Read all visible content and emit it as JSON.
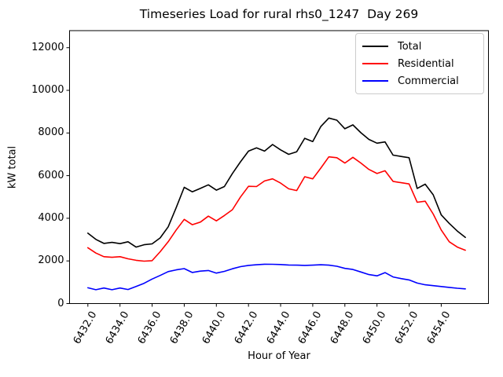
{
  "chart_data": {
    "type": "line",
    "title": "Timeseries Load for rural rhs0_1247  Day 269",
    "xlabel": "Hour of Year",
    "ylabel": "kW total",
    "xlim": [
      6430.86,
      6456.94
    ],
    "ylim": [
      0,
      12800
    ],
    "grid": false,
    "legend_position": "upper right",
    "xtick_labels": [
      "6432.0",
      "6434.0",
      "6436.0",
      "6438.0",
      "6440.0",
      "6442.0",
      "6444.0",
      "6446.0",
      "6448.0",
      "6450.0",
      "6452.0",
      "6454.0"
    ],
    "ytick_labels": [
      "0",
      "2000",
      "4000",
      "6000",
      "8000",
      "10000",
      "12000"
    ],
    "x": [
      6432.0,
      6432.5,
      6433.0,
      6433.5,
      6434.0,
      6434.5,
      6435.0,
      6435.5,
      6436.0,
      6436.5,
      6437.0,
      6437.5,
      6438.0,
      6438.5,
      6439.0,
      6439.5,
      6440.0,
      6440.5,
      6441.0,
      6441.5,
      6442.0,
      6442.5,
      6443.0,
      6443.5,
      6444.0,
      6444.5,
      6445.0,
      6445.5,
      6446.0,
      6446.5,
      6447.0,
      6447.5,
      6448.0,
      6448.5,
      6449.0,
      6449.5,
      6450.0,
      6450.5,
      6451.0,
      6451.5,
      6452.0,
      6452.5,
      6453.0,
      6453.5,
      6454.0,
      6454.5,
      6455.0,
      6455.5
    ],
    "series": [
      {
        "name": "Total",
        "color": "#000000",
        "values": [
          3300,
          3010,
          2820,
          2870,
          2810,
          2900,
          2650,
          2760,
          2800,
          3080,
          3600,
          4500,
          5450,
          5240,
          5400,
          5570,
          5320,
          5490,
          6100,
          6650,
          7150,
          7300,
          7150,
          7460,
          7210,
          7000,
          7120,
          7750,
          7600,
          8300,
          8700,
          8600,
          8200,
          8380,
          8010,
          7700,
          7520,
          7580,
          6960,
          6900,
          6840,
          5400,
          5600,
          5100,
          4160,
          3760,
          3400,
          3100
        ]
      },
      {
        "name": "Residential",
        "color": "#ff0000",
        "values": [
          2620,
          2370,
          2200,
          2170,
          2200,
          2100,
          2030,
          1990,
          2010,
          2430,
          2900,
          3450,
          3950,
          3700,
          3820,
          4100,
          3880,
          4130,
          4400,
          5000,
          5500,
          5490,
          5750,
          5850,
          5650,
          5380,
          5300,
          5950,
          5850,
          6350,
          6880,
          6840,
          6590,
          6860,
          6590,
          6290,
          6100,
          6230,
          5730,
          5670,
          5610,
          4750,
          4800,
          4200,
          3450,
          2900,
          2650,
          2500
        ]
      },
      {
        "name": "Commercial",
        "color": "#0000ff",
        "values": [
          740,
          650,
          730,
          650,
          730,
          660,
          800,
          950,
          1150,
          1320,
          1500,
          1580,
          1640,
          1460,
          1520,
          1550,
          1430,
          1510,
          1630,
          1730,
          1790,
          1820,
          1845,
          1840,
          1830,
          1810,
          1800,
          1790,
          1800,
          1820,
          1800,
          1750,
          1650,
          1600,
          1480,
          1360,
          1300,
          1450,
          1250,
          1170,
          1110,
          960,
          880,
          840,
          800,
          760,
          720,
          690
        ]
      }
    ]
  }
}
